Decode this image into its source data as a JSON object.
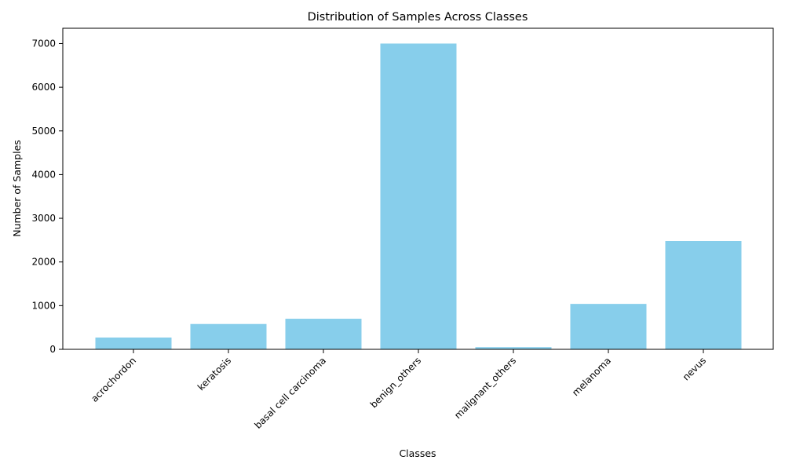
{
  "chart_data": {
    "type": "bar",
    "title": "Distribution of Samples Across Classes",
    "xlabel": "Classes",
    "ylabel": "Number of Samples",
    "categories": [
      "acrochordon",
      "keratosis",
      "basal cell carcinoma",
      "benign_others",
      "malignant_others",
      "melanoma",
      "nevus"
    ],
    "values": [
      270,
      580,
      700,
      7000,
      50,
      1040,
      2480
    ],
    "ylim": [
      0,
      7350
    ],
    "yticks": [
      0,
      1000,
      2000,
      3000,
      4000,
      5000,
      6000,
      7000
    ],
    "grid": false,
    "legend": "none",
    "bar_color": "#87ceeb",
    "axis_color": "#000000"
  }
}
